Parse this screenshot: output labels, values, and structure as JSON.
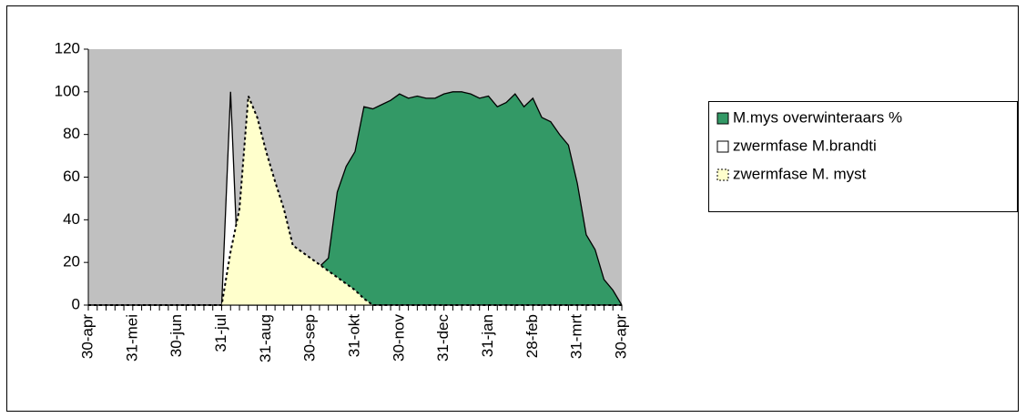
{
  "chart_data": {
    "type": "area",
    "categories": [
      "30-apr",
      null,
      null,
      null,
      null,
      "31-mei",
      null,
      null,
      null,
      null,
      "30-jun",
      null,
      null,
      null,
      null,
      "31-jul",
      null,
      null,
      null,
      null,
      "31-aug",
      null,
      null,
      null,
      null,
      "30-sep",
      null,
      null,
      null,
      null,
      "31-okt",
      null,
      null,
      null,
      null,
      "30-nov",
      null,
      null,
      null,
      null,
      "31-dec",
      null,
      null,
      null,
      null,
      "31-jan",
      null,
      null,
      null,
      null,
      "28-feb",
      null,
      null,
      null,
      null,
      "31-mrt",
      null,
      null,
      null,
      null,
      "30-apr"
    ],
    "series": [
      {
        "name": "M.mys overwinteraars %",
        "color": "#339966",
        "values": [
          0,
          0,
          0,
          0,
          0,
          0,
          0,
          0,
          0,
          0,
          0,
          0,
          0,
          0,
          0,
          0,
          0,
          0,
          0,
          0,
          0,
          0,
          0,
          0,
          0,
          0,
          18,
          22,
          53,
          65,
          72,
          93,
          92,
          94,
          96,
          99,
          97,
          98,
          97,
          97,
          99,
          100,
          100,
          99,
          97,
          98,
          93,
          95,
          99,
          93,
          97,
          88,
          86,
          80,
          75,
          57,
          33,
          26,
          12,
          7,
          0
        ]
      },
      {
        "name": "zwermfase M.brandti",
        "color": "#ffffff",
        "values": [
          0,
          0,
          0,
          0,
          0,
          0,
          0,
          0,
          0,
          0,
          0,
          0,
          0,
          0,
          0,
          0,
          100,
          0,
          0,
          0,
          0,
          0,
          0,
          0,
          0,
          0,
          0,
          0,
          0,
          0,
          0,
          0,
          0,
          0,
          0,
          0,
          0,
          0,
          0,
          0,
          0,
          0,
          0,
          0,
          0,
          0,
          0,
          0,
          0,
          0,
          0,
          0,
          0,
          0,
          0,
          0,
          0,
          0,
          0,
          0,
          0
        ]
      },
      {
        "name": "zwermfase M. myst",
        "color": "#ffffcc",
        "values": [
          0,
          0,
          0,
          0,
          0,
          0,
          0,
          0,
          0,
          0,
          0,
          0,
          0,
          0,
          0,
          0,
          25,
          45,
          98,
          88,
          72,
          58,
          45,
          28,
          25,
          22,
          19,
          16,
          13,
          10,
          7,
          3,
          0,
          0,
          0,
          0,
          0,
          0,
          0,
          0,
          0,
          0,
          0,
          0,
          0,
          0,
          0,
          0,
          0,
          0,
          0,
          0,
          0,
          0,
          0,
          0,
          0,
          0,
          0,
          0,
          0
        ]
      }
    ],
    "ylim": [
      0,
      120
    ],
    "yticks": [
      0,
      20,
      40,
      60,
      80,
      100,
      120
    ],
    "plot_background": "#c0c0c0",
    "legend": "right"
  }
}
